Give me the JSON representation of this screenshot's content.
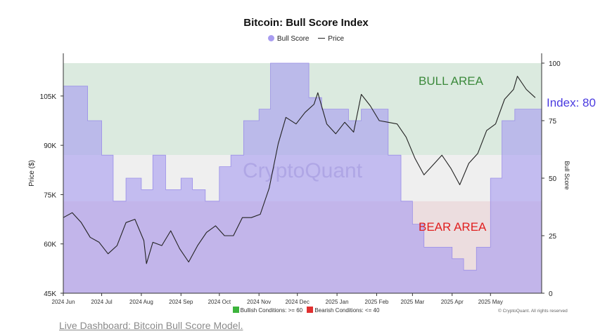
{
  "chart_data": {
    "type": "line",
    "title": "Bitcoin: Bull Score Index",
    "legend": [
      "Bull Score",
      "Price"
    ],
    "ylabel_left": "Price ($)",
    "ylabel_right": "Bull Score",
    "ylim_left": [
      45000,
      115000
    ],
    "ylim_right": [
      0,
      100
    ],
    "yticks_left": [
      "45K",
      "60K",
      "75K",
      "90K",
      "105K"
    ],
    "yticks_left_values": [
      45000,
      60000,
      75000,
      90000,
      105000
    ],
    "yticks_right": [
      "0",
      "25",
      "50",
      "75",
      "100"
    ],
    "yticks_right_values": [
      0,
      25,
      50,
      75,
      100
    ],
    "xticks": [
      "2024 Jun",
      "2024 Jul",
      "2024 Aug",
      "2024 Sep",
      "2024 Oct",
      "2024 Nov",
      "2024 Dec",
      "2025 Jan",
      "2025 Feb",
      "2025 Mar",
      "2025 Apr",
      "2025 May"
    ],
    "xlim": [
      "2024-06-01",
      "2025-06-10"
    ],
    "bull_threshold": 60,
    "bear_threshold": 40,
    "zone_labels": {
      "bull": "BULL AREA",
      "bear": "BEAR AREA"
    },
    "current_index_label": "Index: 80",
    "watermark": "CryptoQuant",
    "colors": {
      "bull_score": "#a89cf0",
      "price": "#222222",
      "bull_zone": "#dbeadf",
      "bear_zone": "#ecdddf",
      "neutral_zone": "#efefef",
      "bull_text": "#3c8a3c",
      "bear_text": "#e02020",
      "index_text": "#4a3be0"
    },
    "series": [
      {
        "name": "Price",
        "x": [
          "2024-06-01",
          "2024-06-08",
          "2024-06-15",
          "2024-06-22",
          "2024-06-29",
          "2024-07-06",
          "2024-07-13",
          "2024-07-20",
          "2024-07-27",
          "2024-08-03",
          "2024-08-05",
          "2024-08-10",
          "2024-08-17",
          "2024-08-24",
          "2024-08-31",
          "2024-09-07",
          "2024-09-14",
          "2024-09-21",
          "2024-09-28",
          "2024-10-05",
          "2024-10-12",
          "2024-10-19",
          "2024-10-26",
          "2024-11-02",
          "2024-11-09",
          "2024-11-16",
          "2024-11-22",
          "2024-11-30",
          "2024-12-07",
          "2024-12-14",
          "2024-12-17",
          "2024-12-24",
          "2024-12-31",
          "2025-01-07",
          "2025-01-14",
          "2025-01-20",
          "2025-01-27",
          "2025-02-03",
          "2025-02-10",
          "2025-02-17",
          "2025-02-24",
          "2025-03-03",
          "2025-03-10",
          "2025-03-17",
          "2025-03-24",
          "2025-03-31",
          "2025-04-07",
          "2025-04-14",
          "2025-04-21",
          "2025-04-28",
          "2025-05-05",
          "2025-05-12",
          "2025-05-19",
          "2025-05-22",
          "2025-05-29",
          "2025-06-05"
        ],
        "values": [
          68000,
          69500,
          66500,
          62000,
          60500,
          57000,
          59500,
          66500,
          67500,
          61000,
          54000,
          60500,
          59500,
          64000,
          58500,
          54500,
          59500,
          63500,
          65500,
          62500,
          62500,
          68000,
          68000,
          69000,
          77000,
          90500,
          98500,
          96500,
          100000,
          102500,
          106000,
          96500,
          93500,
          97000,
          94000,
          105500,
          102000,
          97500,
          97000,
          96500,
          92500,
          86000,
          81000,
          84000,
          87000,
          83000,
          78000,
          84500,
          87500,
          94500,
          96500,
          104000,
          107000,
          111000,
          107000,
          104500
        ]
      },
      {
        "name": "Bull Score",
        "x": [
          "2024-06-01",
          "2024-06-10",
          "2024-06-20",
          "2024-07-01",
          "2024-07-10",
          "2024-07-20",
          "2024-08-01",
          "2024-08-10",
          "2024-08-20",
          "2024-09-01",
          "2024-09-10",
          "2024-09-20",
          "2024-10-01",
          "2024-10-10",
          "2024-10-20",
          "2024-11-01",
          "2024-11-10",
          "2024-11-20",
          "2024-12-01",
          "2024-12-10",
          "2024-12-20",
          "2025-01-01",
          "2025-01-10",
          "2025-01-20",
          "2025-02-01",
          "2025-02-10",
          "2025-02-20",
          "2025-03-01",
          "2025-03-10",
          "2025-03-20",
          "2025-04-01",
          "2025-04-10",
          "2025-04-20",
          "2025-05-01",
          "2025-05-10",
          "2025-05-20",
          "2025-06-01",
          "2025-06-10"
        ],
        "values": [
          90,
          90,
          75,
          60,
          40,
          50,
          45,
          60,
          45,
          50,
          45,
          40,
          55,
          60,
          75,
          80,
          100,
          100,
          100,
          85,
          80,
          80,
          75,
          80,
          80,
          60,
          40,
          30,
          20,
          20,
          15,
          10,
          20,
          50,
          75,
          80,
          80,
          80
        ]
      }
    ]
  },
  "footer": {
    "bullish_label": "Bullish Conditions: >= 60",
    "bearish_label": "Bearish Conditions: <= 40",
    "copyright": "© CryptoQuant. All rights reserved",
    "dashboard_link": "Live Dashboard: Bitcoin Bull Score Model."
  }
}
